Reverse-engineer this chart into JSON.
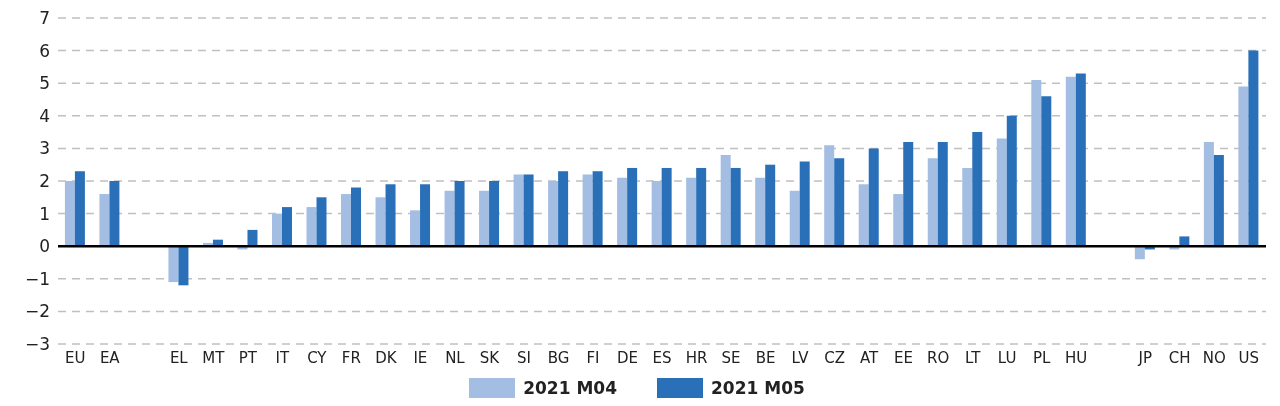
{
  "chart_data": {
    "type": "bar",
    "categories": [
      "EU",
      "EA",
      null,
      "EL",
      "MT",
      "PT",
      "IT",
      "CY",
      "FR",
      "DK",
      "IE",
      "NL",
      "SK",
      "SI",
      "BG",
      "FI",
      "DE",
      "ES",
      "HR",
      "SE",
      "BE",
      "LV",
      "CZ",
      "AT",
      "EE",
      "RO",
      "LT",
      "LU",
      "PL",
      "HU",
      null,
      "JP",
      "CH",
      "NO",
      "US"
    ],
    "series": [
      {
        "name": "2021 M04",
        "color": "#a4bde2",
        "values": [
          2.0,
          1.6,
          null,
          -1.1,
          0.1,
          -0.1,
          1.0,
          1.2,
          1.6,
          1.5,
          1.1,
          1.7,
          1.7,
          2.2,
          2.0,
          2.2,
          2.1,
          2.0,
          2.1,
          2.8,
          2.1,
          1.7,
          3.1,
          1.9,
          1.6,
          2.7,
          2.4,
          3.3,
          5.1,
          5.2,
          null,
          -0.4,
          -0.1,
          3.2,
          4.9
        ]
      },
      {
        "name": "2021 M05",
        "color": "#2a70b8",
        "values": [
          2.3,
          2.0,
          null,
          -1.2,
          0.2,
          0.5,
          1.2,
          1.5,
          1.8,
          1.9,
          1.9,
          2.0,
          2.0,
          2.2,
          2.3,
          2.3,
          2.4,
          2.4,
          2.4,
          2.4,
          2.5,
          2.6,
          2.7,
          3.0,
          3.2,
          3.2,
          3.5,
          4.0,
          4.6,
          5.3,
          null,
          -0.1,
          0.3,
          2.8,
          6.0
        ]
      }
    ],
    "ylim": [
      -3,
      7
    ],
    "yticks": [
      -3,
      -2,
      -1,
      0,
      1,
      2,
      3,
      4,
      5,
      6,
      7
    ],
    "grid": "y",
    "legend": "bottom"
  }
}
